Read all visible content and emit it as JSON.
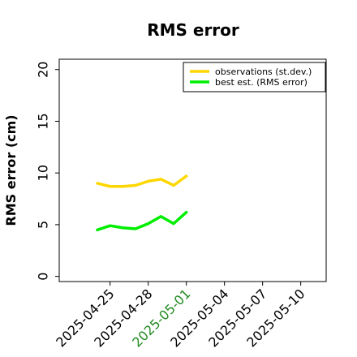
{
  "chart_data": {
    "type": "line",
    "title": "RMS error",
    "xlabel": "",
    "ylabel": "RMS error (cm)",
    "ylim": [
      -0.5,
      21
    ],
    "xlim": [
      "2025-04-21",
      "2025-05-12"
    ],
    "yticks": [
      0,
      5,
      10,
      15,
      20
    ],
    "xticks": [
      {
        "label": "2025-04-25",
        "color": "#000000"
      },
      {
        "label": "2025-04-28",
        "color": "#000000"
      },
      {
        "label": "2025-05-01",
        "color": "#228b22"
      },
      {
        "label": "2025-05-04",
        "color": "#000000"
      },
      {
        "label": "2025-05-07",
        "color": "#000000"
      },
      {
        "label": "2025-05-10",
        "color": "#000000"
      }
    ],
    "grid": false,
    "legend_position": "top-right",
    "series": [
      {
        "name": "observations (st.dev.)",
        "color": "#ffd700",
        "x": [
          "2025-04-24",
          "2025-04-25",
          "2025-04-26",
          "2025-04-27",
          "2025-04-28",
          "2025-04-29",
          "2025-04-30",
          "2025-05-01"
        ],
        "y": [
          9.0,
          8.7,
          8.7,
          8.8,
          9.2,
          9.4,
          8.8,
          9.7
        ]
      },
      {
        "name": "best est. (RMS error)",
        "color": "#00ee00",
        "x": [
          "2025-04-24",
          "2025-04-25",
          "2025-04-26",
          "2025-04-27",
          "2025-04-28",
          "2025-04-29",
          "2025-04-30",
          "2025-05-01"
        ],
        "y": [
          4.5,
          4.9,
          4.7,
          4.6,
          5.1,
          5.8,
          5.1,
          6.2
        ]
      }
    ]
  }
}
